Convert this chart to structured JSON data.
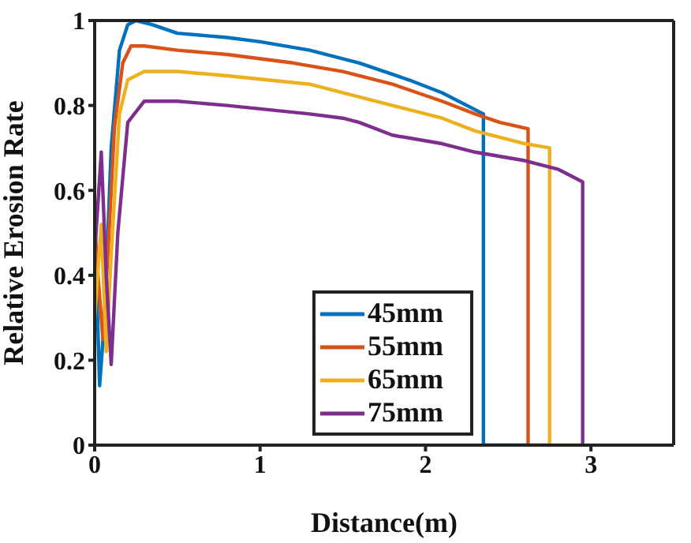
{
  "chart_data": {
    "type": "line",
    "xlabel": "Distance(m)",
    "ylabel": "Relative Erosion Rate",
    "xlim": [
      0,
      3.5
    ],
    "xticks": [
      0,
      1,
      2,
      3
    ],
    "ylim": [
      0,
      1
    ],
    "yticks": [
      0,
      0.2,
      0.4,
      0.6,
      0.8,
      1
    ],
    "legend": "bottom",
    "grid": false,
    "marker": "none",
    "line_style": "solid",
    "series": [
      {
        "name": "45mm",
        "color": "#0072bd",
        "x": [
          0,
          0.01,
          0.03,
          0.06,
          0.1,
          0.15,
          0.2,
          0.25,
          0.35,
          0.5,
          0.8,
          1,
          1.3,
          1.6,
          1.9,
          2.1,
          2.35,
          2.35,
          2.62
        ],
        "values": [
          0.55,
          0.4,
          0.14,
          0.3,
          0.7,
          0.93,
          0.99,
          1.0,
          0.99,
          0.97,
          0.96,
          0.95,
          0.93,
          0.9,
          0.86,
          0.83,
          0.78,
          0,
          0
        ]
      },
      {
        "name": "55mm",
        "color": "#d95319",
        "x": [
          0,
          0.02,
          0.05,
          0.08,
          0.12,
          0.17,
          0.22,
          0.3,
          0.5,
          0.8,
          1.2,
          1.5,
          1.8,
          2.1,
          2.3,
          2.45,
          2.62,
          2.62,
          2.75
        ],
        "values": [
          0.52,
          0.4,
          0.25,
          0.45,
          0.75,
          0.9,
          0.94,
          0.94,
          0.93,
          0.92,
          0.9,
          0.88,
          0.85,
          0.81,
          0.78,
          0.76,
          0.745,
          0,
          0
        ]
      },
      {
        "name": "65mm",
        "color": "#edb120",
        "x": [
          0,
          0.04,
          0.07,
          0.1,
          0.15,
          0.2,
          0.3,
          0.5,
          0.8,
          1.3,
          1.6,
          1.8,
          2.1,
          2.3,
          2.6,
          2.75,
          2.75,
          2.95
        ],
        "values": [
          0.3,
          0.52,
          0.22,
          0.45,
          0.78,
          0.86,
          0.88,
          0.88,
          0.87,
          0.85,
          0.82,
          0.8,
          0.77,
          0.74,
          0.71,
          0.7,
          0,
          0
        ]
      },
      {
        "name": "75mm",
        "color": "#7e2f8e",
        "x": [
          0,
          0.04,
          0.07,
          0.1,
          0.14,
          0.2,
          0.3,
          0.5,
          0.8,
          1.3,
          1.5,
          1.6,
          1.8,
          2.1,
          2.3,
          2.6,
          2.8,
          2.95,
          2.95
        ],
        "values": [
          0.45,
          0.69,
          0.4,
          0.19,
          0.5,
          0.76,
          0.81,
          0.81,
          0.8,
          0.78,
          0.77,
          0.76,
          0.73,
          0.71,
          0.69,
          0.67,
          0.65,
          0.62,
          0
        ]
      }
    ]
  }
}
